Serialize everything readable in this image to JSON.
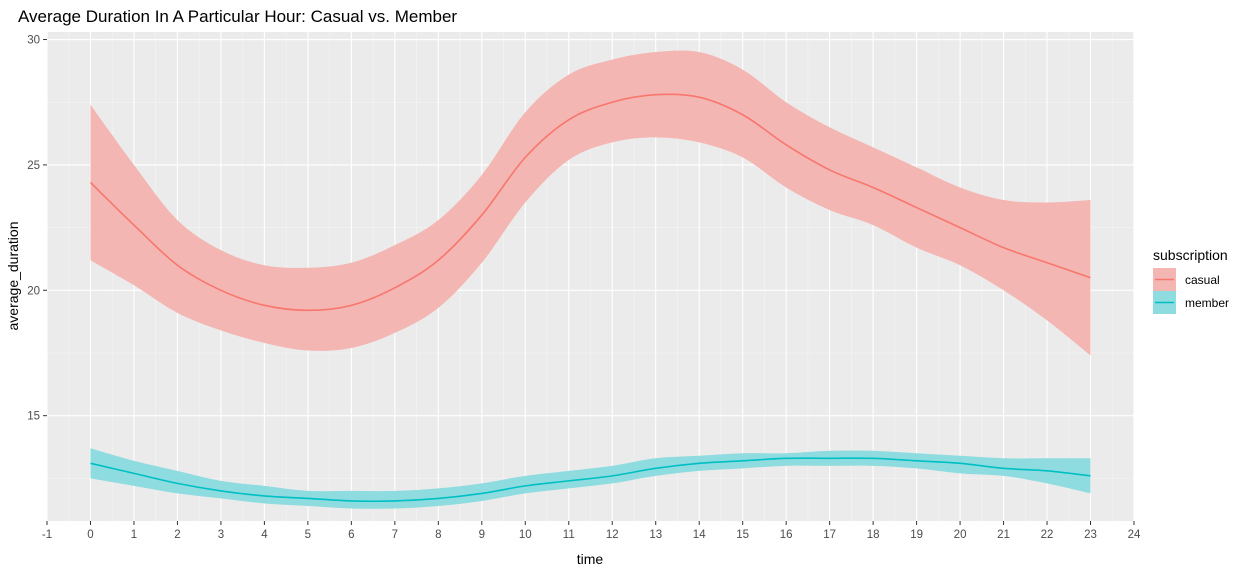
{
  "chart_data": {
    "type": "line",
    "title": "Average Duration In A Particular Hour: Casual vs. Member",
    "xlabel": "time",
    "ylabel": "average_duration",
    "xlim": [
      -1,
      24
    ],
    "ylim": [
      10.8,
      30.3
    ],
    "x_ticks": [
      -1,
      0,
      1,
      2,
      3,
      4,
      5,
      6,
      7,
      8,
      9,
      10,
      11,
      12,
      13,
      14,
      15,
      16,
      17,
      18,
      19,
      20,
      21,
      22,
      23,
      24
    ],
    "y_ticks": [
      15,
      20,
      25,
      30
    ],
    "grid": true,
    "legend": {
      "title": "subscription",
      "position": "right"
    },
    "x": [
      0,
      1,
      2,
      3,
      4,
      5,
      6,
      7,
      8,
      9,
      10,
      11,
      12,
      13,
      14,
      15,
      16,
      17,
      18,
      19,
      20,
      21,
      22,
      23
    ],
    "series": [
      {
        "name": "casual",
        "color": "#F8766D",
        "band_color": "#F4B6B2",
        "values": [
          24.3,
          22.6,
          21.0,
          20.0,
          19.4,
          19.2,
          19.4,
          20.1,
          21.2,
          23.0,
          25.3,
          26.8,
          27.5,
          27.8,
          27.7,
          27.0,
          25.8,
          24.8,
          24.1,
          23.3,
          22.5,
          21.7,
          21.1,
          20.5
        ],
        "lower": [
          21.2,
          20.2,
          19.1,
          18.4,
          17.9,
          17.6,
          17.7,
          18.3,
          19.3,
          21.1,
          23.5,
          25.2,
          25.9,
          26.1,
          25.9,
          25.3,
          24.1,
          23.2,
          22.6,
          21.7,
          21.0,
          20.0,
          18.8,
          17.4
        ],
        "upper": [
          27.4,
          25.0,
          22.8,
          21.6,
          21.0,
          20.9,
          21.1,
          21.8,
          22.8,
          24.6,
          27.1,
          28.6,
          29.2,
          29.5,
          29.5,
          28.8,
          27.5,
          26.5,
          25.7,
          24.9,
          24.1,
          23.6,
          23.5,
          23.6
        ]
      },
      {
        "name": "member",
        "color": "#00BFC4",
        "band_color": "#8EDCDF",
        "values": [
          13.1,
          12.7,
          12.3,
          12.0,
          11.8,
          11.7,
          11.6,
          11.6,
          11.7,
          11.9,
          12.2,
          12.4,
          12.6,
          12.9,
          13.1,
          13.2,
          13.3,
          13.3,
          13.3,
          13.2,
          13.1,
          12.9,
          12.8,
          12.6
        ],
        "lower": [
          12.5,
          12.2,
          11.9,
          11.7,
          11.5,
          11.4,
          11.3,
          11.3,
          11.4,
          11.6,
          11.9,
          12.1,
          12.3,
          12.6,
          12.8,
          12.9,
          13.0,
          13.0,
          13.0,
          12.9,
          12.7,
          12.6,
          12.3,
          11.9
        ],
        "upper": [
          13.7,
          13.2,
          12.8,
          12.4,
          12.2,
          12.0,
          12.0,
          12.0,
          12.1,
          12.3,
          12.6,
          12.8,
          13.0,
          13.3,
          13.4,
          13.5,
          13.5,
          13.6,
          13.6,
          13.5,
          13.4,
          13.3,
          13.3,
          13.3
        ]
      }
    ]
  }
}
